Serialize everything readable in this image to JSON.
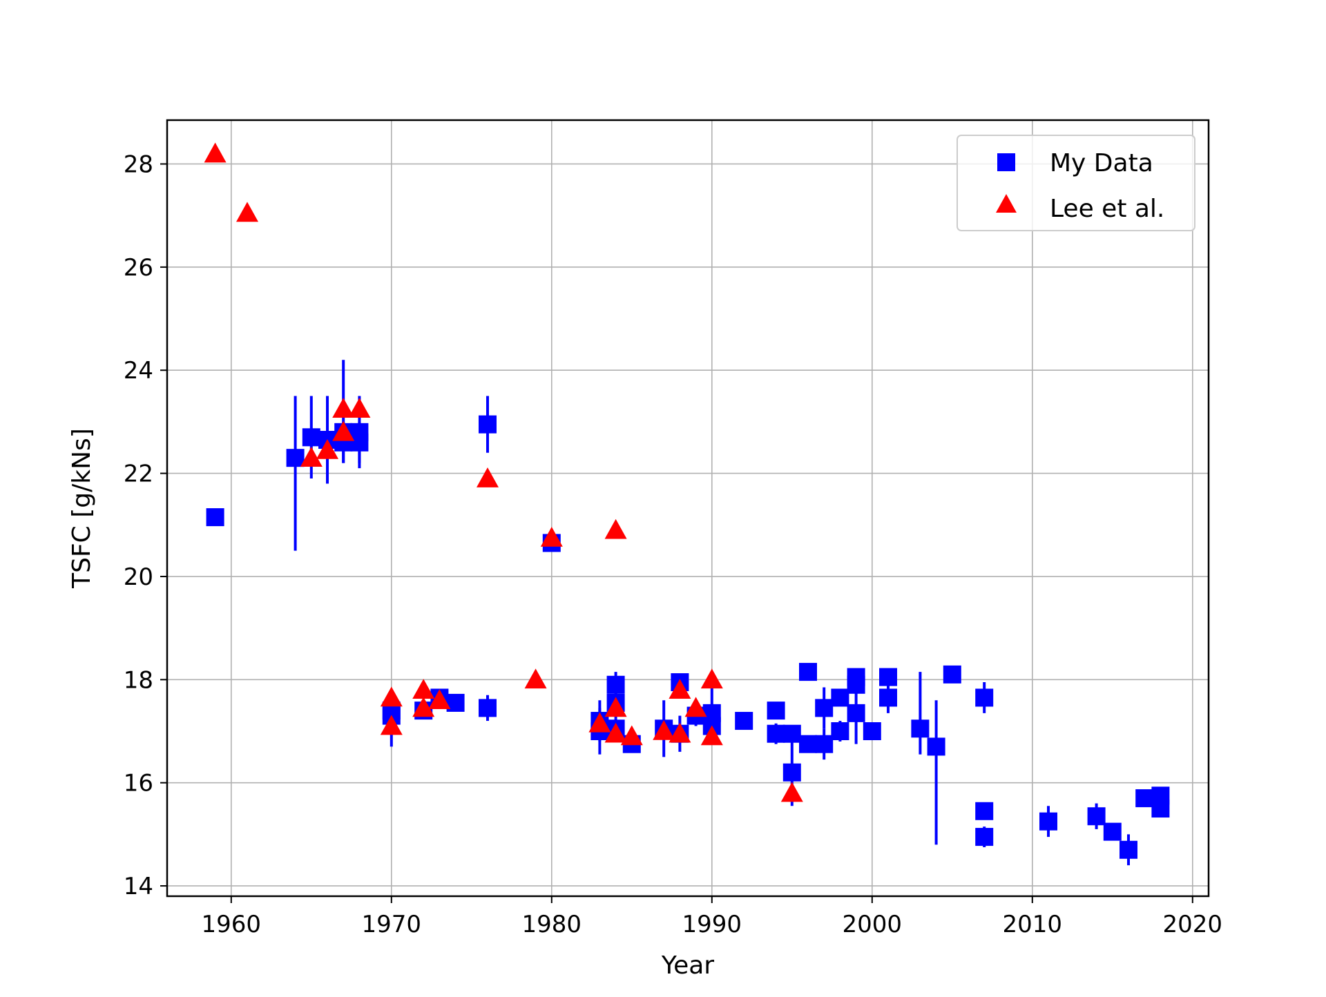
{
  "chart_data": {
    "type": "scatter",
    "title": "",
    "xlabel": "Year",
    "ylabel": "TSFC [g/kNs]",
    "xlim": [
      1956,
      2021
    ],
    "ylim": [
      13.8,
      28.85
    ],
    "xticks": [
      1960,
      1970,
      1980,
      1990,
      2000,
      2010,
      2020
    ],
    "yticks": [
      14,
      16,
      18,
      20,
      22,
      24,
      26,
      28
    ],
    "x_tick_labels": [
      "1960",
      "1970",
      "1980",
      "1990",
      "2000",
      "2010",
      "2020"
    ],
    "y_tick_labels": [
      "14",
      "16",
      "18",
      "20",
      "22",
      "24",
      "26",
      "28"
    ],
    "grid": true,
    "legend_position": "top-right",
    "series": [
      {
        "name": "My Data",
        "marker": "square",
        "color": "#0000ff",
        "points": [
          {
            "x": 1959,
            "y": 21.15,
            "err": 0
          },
          {
            "x": 1964,
            "y": 22.3,
            "err": [
              1.8,
              1.2
            ]
          },
          {
            "x": 1965,
            "y": 22.7,
            "err": 0.8
          },
          {
            "x": 1966,
            "y": 22.65,
            "err": 0.85
          },
          {
            "x": 1967,
            "y": 22.8,
            "err": [
              0.6,
              1.4
            ]
          },
          {
            "x": 1967,
            "y": 22.6,
            "err": 0.4
          },
          {
            "x": 1968,
            "y": 22.8,
            "err": 0.7
          },
          {
            "x": 1968,
            "y": 22.6,
            "err": 0.4
          },
          {
            "x": 1970,
            "y": 17.4,
            "err": [
              0.7,
              0.2
            ]
          },
          {
            "x": 1970,
            "y": 17.3,
            "err": 0.1
          },
          {
            "x": 1972,
            "y": 17.4,
            "err": 0.1
          },
          {
            "x": 1973,
            "y": 17.65,
            "err": 0.1
          },
          {
            "x": 1974,
            "y": 17.55,
            "err": 0.1
          },
          {
            "x": 1976,
            "y": 22.95,
            "err": 0.55
          },
          {
            "x": 1976,
            "y": 17.45,
            "err": 0.25
          },
          {
            "x": 1980,
            "y": 20.65,
            "err": 0.1
          },
          {
            "x": 1983,
            "y": 17.2,
            "err": 0.4
          },
          {
            "x": 1983,
            "y": 17.0,
            "err": 0.45
          },
          {
            "x": 1984,
            "y": 17.9,
            "err": 0.25
          },
          {
            "x": 1984,
            "y": 17.55,
            "err": 0.3
          },
          {
            "x": 1984,
            "y": 17.05,
            "err": 0.2
          },
          {
            "x": 1985,
            "y": 16.75,
            "err": 0.1
          },
          {
            "x": 1987,
            "y": 17.05,
            "err": 0.55
          },
          {
            "x": 1988,
            "y": 17.95,
            "err": 0.15
          },
          {
            "x": 1988,
            "y": 16.95,
            "err": 0.35
          },
          {
            "x": 1989,
            "y": 17.3,
            "err": 0.2
          },
          {
            "x": 1990,
            "y": 17.35,
            "err": 0.55
          },
          {
            "x": 1990,
            "y": 17.1,
            "err": 0.25
          },
          {
            "x": 1992,
            "y": 17.2,
            "err": 0.1
          },
          {
            "x": 1994,
            "y": 17.4,
            "err": 0.1
          },
          {
            "x": 1994,
            "y": 16.95,
            "err": 0.2
          },
          {
            "x": 1995,
            "y": 16.95,
            "err": 0.15
          },
          {
            "x": 1995,
            "y": 16.2,
            "err": 0.65
          },
          {
            "x": 1996,
            "y": 18.15,
            "err": 0.1
          },
          {
            "x": 1996,
            "y": 16.75,
            "err": 0.1
          },
          {
            "x": 1997,
            "y": 17.45,
            "err": 0.4
          },
          {
            "x": 1997,
            "y": 16.75,
            "err": 0.3
          },
          {
            "x": 1998,
            "y": 17.65,
            "err": 0.15
          },
          {
            "x": 1998,
            "y": 17.0,
            "err": 0.2
          },
          {
            "x": 1999,
            "y": 18.05,
            "err": 0.1
          },
          {
            "x": 1999,
            "y": 17.9,
            "err": 0.1
          },
          {
            "x": 1999,
            "y": 17.35,
            "err": 0.6
          },
          {
            "x": 2000,
            "y": 17.0,
            "err": 0.1
          },
          {
            "x": 2001,
            "y": 18.05,
            "err": 0.1
          },
          {
            "x": 2001,
            "y": 17.65,
            "err": 0.3
          },
          {
            "x": 2003,
            "y": 17.05,
            "err": [
              0.5,
              1.1
            ]
          },
          {
            "x": 2004,
            "y": 16.7,
            "err": [
              1.9,
              0.9
            ]
          },
          {
            "x": 2005,
            "y": 18.1,
            "err": 0.1
          },
          {
            "x": 2007,
            "y": 17.65,
            "err": 0.3
          },
          {
            "x": 2007,
            "y": 15.45,
            "err": 0.1
          },
          {
            "x": 2007,
            "y": 14.95,
            "err": 0.2
          },
          {
            "x": 2011,
            "y": 15.25,
            "err": 0.3
          },
          {
            "x": 2014,
            "y": 15.35,
            "err": 0.25
          },
          {
            "x": 2015,
            "y": 15.05,
            "err": 0.1
          },
          {
            "x": 2016,
            "y": 14.7,
            "err": 0.3
          },
          {
            "x": 2017,
            "y": 15.7,
            "err": 0.1
          },
          {
            "x": 2018,
            "y": 15.75,
            "err": 0.1
          },
          {
            "x": 2018,
            "y": 15.5,
            "err": 0.1
          }
        ]
      },
      {
        "name": "Lee et al.",
        "marker": "triangle",
        "color": "#ff0000",
        "points": [
          {
            "x": 1959,
            "y": 28.2
          },
          {
            "x": 1961,
            "y": 27.05
          },
          {
            "x": 1965,
            "y": 22.3
          },
          {
            "x": 1966,
            "y": 22.45
          },
          {
            "x": 1967,
            "y": 23.25
          },
          {
            "x": 1967,
            "y": 22.8
          },
          {
            "x": 1968,
            "y": 23.25
          },
          {
            "x": 1970,
            "y": 17.65
          },
          {
            "x": 1970,
            "y": 17.1
          },
          {
            "x": 1972,
            "y": 17.8
          },
          {
            "x": 1972,
            "y": 17.45
          },
          {
            "x": 1973,
            "y": 17.6
          },
          {
            "x": 1976,
            "y": 21.9
          },
          {
            "x": 1979,
            "y": 18.0
          },
          {
            "x": 1980,
            "y": 20.75
          },
          {
            "x": 1983,
            "y": 17.15
          },
          {
            "x": 1984,
            "y": 20.9
          },
          {
            "x": 1984,
            "y": 17.45
          },
          {
            "x": 1984,
            "y": 16.95
          },
          {
            "x": 1985,
            "y": 16.9
          },
          {
            "x": 1987,
            "y": 17.0
          },
          {
            "x": 1988,
            "y": 17.8
          },
          {
            "x": 1988,
            "y": 16.95
          },
          {
            "x": 1989,
            "y": 17.45
          },
          {
            "x": 1990,
            "y": 18.0
          },
          {
            "x": 1990,
            "y": 16.9
          },
          {
            "x": 1995,
            "y": 15.8
          }
        ]
      }
    ]
  }
}
